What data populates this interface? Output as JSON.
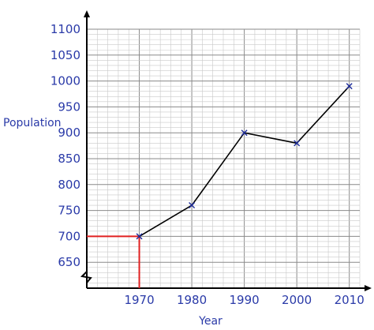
{
  "chart_data": {
    "type": "line",
    "title": "",
    "xlabel": "Year",
    "ylabel": "Population",
    "grid": true,
    "x": [
      1970,
      1980,
      1990,
      2000,
      2010
    ],
    "xticks": [
      "1970",
      "1980",
      "1990",
      "2000",
      "2010"
    ],
    "yticks": [
      "650",
      "700",
      "750",
      "800",
      "850",
      "900",
      "950",
      "1000",
      "1050",
      "1100"
    ],
    "xlim": [
      1960,
      2012
    ],
    "ylim": [
      600,
      1100
    ],
    "axis_break": "y",
    "series": [
      {
        "values": [
          700,
          760,
          900,
          880,
          990
        ],
        "marker": "x",
        "color": "#000000"
      }
    ],
    "annotation": {
      "x": 1970,
      "y": 700,
      "color": "#e02020"
    },
    "colors": {
      "text": "#2a3aa8",
      "minor_grid": "#c9c9c9",
      "major_grid": "#8a8a8a",
      "axis": "#000000"
    }
  }
}
